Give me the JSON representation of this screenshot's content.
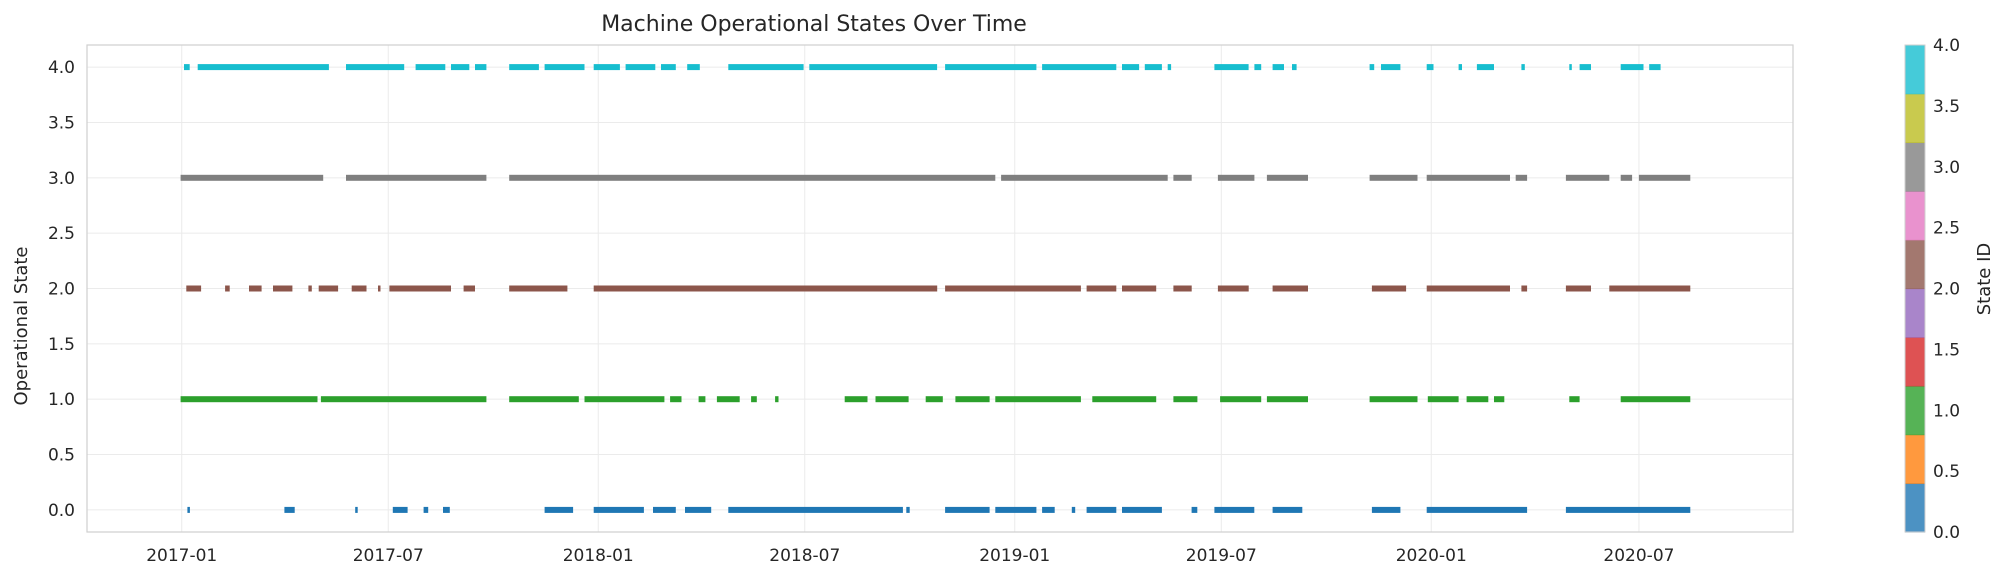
{
  "chart_data": {
    "type": "scatter",
    "title": "Machine Operational States Over Time",
    "xlabel": "",
    "ylabel": "Operational State",
    "x_type": "date",
    "xlim": [
      "2016-10-10",
      "2020-11-13"
    ],
    "ylim": [
      -0.2,
      4.2
    ],
    "x_ticks": [
      "2017-01",
      "2017-07",
      "2018-01",
      "2018-07",
      "2019-01",
      "2019-07",
      "2020-01",
      "2020-07"
    ],
    "y_ticks": [
      "0.0",
      "0.5",
      "1.0",
      "1.5",
      "2.0",
      "2.5",
      "3.0",
      "3.5",
      "4.0"
    ],
    "grid": true,
    "colorbar": {
      "label": "State ID",
      "range": [
        0,
        4
      ],
      "ticks": [
        "0.0",
        "0.5",
        "1.0",
        "1.5",
        "2.0",
        "2.5",
        "3.0",
        "3.5",
        "4.0"
      ],
      "colors": [
        "#1f77b4",
        "#ff7f0e",
        "#2ca02c",
        "#d62728",
        "#9467bd",
        "#8c564b",
        "#e377c2",
        "#7f7f7f",
        "#bcbd22",
        "#17becf"
      ]
    },
    "series": [
      {
        "state": 0,
        "color": "#1f77b4",
        "periods": [
          [
            "2017-01-06",
            "2017-01-08"
          ],
          [
            "2017-04-01",
            "2017-04-10"
          ],
          [
            "2017-06-02",
            "2017-06-04"
          ],
          [
            "2017-07-05",
            "2017-07-18"
          ],
          [
            "2017-08-01",
            "2017-08-05"
          ],
          [
            "2017-08-18",
            "2017-08-24"
          ],
          [
            "2017-11-15",
            "2017-12-10"
          ],
          [
            "2017-12-28",
            "2018-02-10"
          ],
          [
            "2018-02-18",
            "2018-03-10"
          ],
          [
            "2018-03-18",
            "2018-04-10"
          ],
          [
            "2018-04-25",
            "2018-09-25"
          ],
          [
            "2018-09-28",
            "2018-10-01"
          ],
          [
            "2018-11-01",
            "2018-12-10"
          ],
          [
            "2018-12-15",
            "2019-01-20"
          ],
          [
            "2019-01-25",
            "2019-02-05"
          ],
          [
            "2019-02-20",
            "2019-02-23"
          ],
          [
            "2019-03-05",
            "2019-03-31"
          ],
          [
            "2019-04-05",
            "2019-05-10"
          ],
          [
            "2019-06-05",
            "2019-06-10"
          ],
          [
            "2019-06-25",
            "2019-07-30"
          ],
          [
            "2019-08-15",
            "2019-09-10"
          ],
          [
            "2019-11-10",
            "2019-12-05"
          ],
          [
            "2019-12-28",
            "2020-03-25"
          ],
          [
            "2020-04-28",
            "2020-08-15"
          ]
        ]
      },
      {
        "state": 1,
        "color": "#2ca02c",
        "periods": [
          [
            "2016-12-31",
            "2017-04-30"
          ],
          [
            "2017-05-03",
            "2017-09-25"
          ],
          [
            "2017-10-15",
            "2017-12-15"
          ],
          [
            "2017-12-20",
            "2018-02-28"
          ],
          [
            "2018-03-05",
            "2018-03-15"
          ],
          [
            "2018-03-30",
            "2018-04-05"
          ],
          [
            "2018-04-15",
            "2018-05-05"
          ],
          [
            "2018-05-15",
            "2018-05-20"
          ],
          [
            "2018-06-05",
            "2018-06-08"
          ],
          [
            "2018-08-05",
            "2018-08-25"
          ],
          [
            "2018-09-01",
            "2018-09-30"
          ],
          [
            "2018-10-15",
            "2018-10-30"
          ],
          [
            "2018-11-10",
            "2018-12-10"
          ],
          [
            "2018-12-15",
            "2019-02-28"
          ],
          [
            "2019-03-10",
            "2019-05-05"
          ],
          [
            "2019-05-20",
            "2019-06-10"
          ],
          [
            "2019-06-30",
            "2019-08-05"
          ],
          [
            "2019-08-10",
            "2019-09-15"
          ],
          [
            "2019-11-08",
            "2019-12-20"
          ],
          [
            "2019-12-29",
            "2020-01-25"
          ],
          [
            "2020-02-01",
            "2020-02-20"
          ],
          [
            "2020-02-25",
            "2020-03-05"
          ],
          [
            "2020-05-01",
            "2020-05-10"
          ],
          [
            "2020-06-15",
            "2020-08-15"
          ]
        ]
      },
      {
        "state": 2,
        "color": "#8c564b",
        "periods": [
          [
            "2017-01-05",
            "2017-01-18"
          ],
          [
            "2017-02-08",
            "2017-02-12"
          ],
          [
            "2017-03-01",
            "2017-03-12"
          ],
          [
            "2017-03-22",
            "2017-04-08"
          ],
          [
            "2017-04-22",
            "2017-04-25"
          ],
          [
            "2017-05-01",
            "2017-05-18"
          ],
          [
            "2017-05-30",
            "2017-06-12"
          ],
          [
            "2017-06-22",
            "2017-06-24"
          ],
          [
            "2017-07-02",
            "2017-08-25"
          ],
          [
            "2017-09-05",
            "2017-09-15"
          ],
          [
            "2017-10-15",
            "2017-12-05"
          ],
          [
            "2017-12-28",
            "2018-10-25"
          ],
          [
            "2018-11-01",
            "2019-02-28"
          ],
          [
            "2019-03-05",
            "2019-03-31"
          ],
          [
            "2019-04-05",
            "2019-05-05"
          ],
          [
            "2019-05-20",
            "2019-06-05"
          ],
          [
            "2019-06-28",
            "2019-07-25"
          ],
          [
            "2019-08-15",
            "2019-09-15"
          ],
          [
            "2019-11-10",
            "2019-12-10"
          ],
          [
            "2019-12-28",
            "2020-03-10"
          ],
          [
            "2020-03-20",
            "2020-03-25"
          ],
          [
            "2020-04-28",
            "2020-05-20"
          ],
          [
            "2020-06-05",
            "2020-08-15"
          ]
        ]
      },
      {
        "state": 3,
        "color": "#7f7f7f",
        "periods": [
          [
            "2016-12-31",
            "2017-05-05"
          ],
          [
            "2017-05-25",
            "2017-09-25"
          ],
          [
            "2017-10-15",
            "2018-12-15"
          ],
          [
            "2018-12-20",
            "2019-05-15"
          ],
          [
            "2019-05-20",
            "2019-06-05"
          ],
          [
            "2019-06-28",
            "2019-07-30"
          ],
          [
            "2019-08-10",
            "2019-09-15"
          ],
          [
            "2019-11-08",
            "2019-12-20"
          ],
          [
            "2019-12-28",
            "2020-03-10"
          ],
          [
            "2020-03-15",
            "2020-03-25"
          ],
          [
            "2020-04-28",
            "2020-06-05"
          ],
          [
            "2020-06-15",
            "2020-06-25"
          ],
          [
            "2020-07-01",
            "2020-08-15"
          ]
        ]
      },
      {
        "state": 4,
        "color": "#17becf",
        "periods": [
          [
            "2017-01-03",
            "2017-01-08"
          ],
          [
            "2017-01-15",
            "2017-05-10"
          ],
          [
            "2017-05-25",
            "2017-07-15"
          ],
          [
            "2017-07-25",
            "2017-08-20"
          ],
          [
            "2017-08-25",
            "2017-09-10"
          ],
          [
            "2017-09-15",
            "2017-09-25"
          ],
          [
            "2017-10-15",
            "2017-11-10"
          ],
          [
            "2017-11-15",
            "2017-12-20"
          ],
          [
            "2017-12-28",
            "2018-01-20"
          ],
          [
            "2018-01-25",
            "2018-02-20"
          ],
          [
            "2018-02-25",
            "2018-03-10"
          ],
          [
            "2018-03-20",
            "2018-03-31"
          ],
          [
            "2018-04-25",
            "2018-06-30"
          ],
          [
            "2018-07-05",
            "2018-10-25"
          ],
          [
            "2018-11-01",
            "2019-01-20"
          ],
          [
            "2019-01-25",
            "2019-03-31"
          ],
          [
            "2019-04-05",
            "2019-04-20"
          ],
          [
            "2019-04-25",
            "2019-05-10"
          ],
          [
            "2019-05-15",
            "2019-05-18"
          ],
          [
            "2019-06-25",
            "2019-07-25"
          ],
          [
            "2019-07-30",
            "2019-08-05"
          ],
          [
            "2019-08-15",
            "2019-08-25"
          ],
          [
            "2019-09-01",
            "2019-09-05"
          ],
          [
            "2019-11-08",
            "2019-11-12"
          ],
          [
            "2019-11-18",
            "2019-12-05"
          ],
          [
            "2019-12-28",
            "2020-01-03"
          ],
          [
            "2020-01-25",
            "2020-01-28"
          ],
          [
            "2020-02-10",
            "2020-02-25"
          ],
          [
            "2020-03-20",
            "2020-03-23"
          ],
          [
            "2020-05-01",
            "2020-05-03"
          ],
          [
            "2020-05-10",
            "2020-05-20"
          ],
          [
            "2020-06-15",
            "2020-07-05"
          ],
          [
            "2020-07-10",
            "2020-07-20"
          ]
        ]
      }
    ]
  }
}
